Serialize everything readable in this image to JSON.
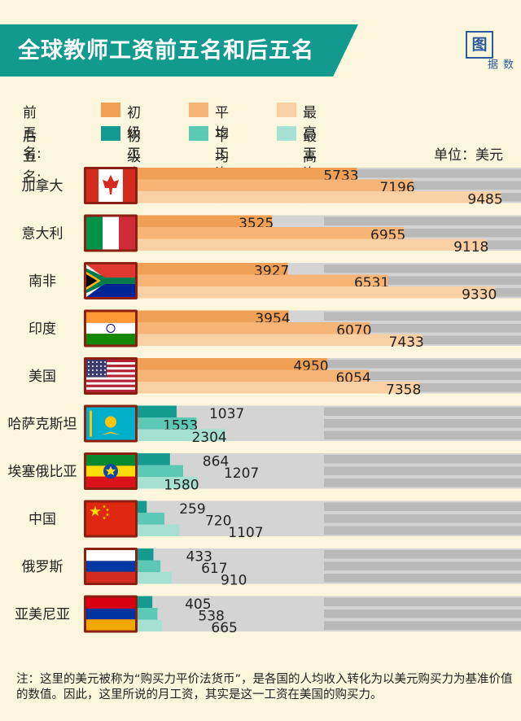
{
  "title": "全球教师工资前五名和后五名",
  "logo": {
    "mark": "图",
    "sub": "数据"
  },
  "legend": {
    "top_label": "前五名:",
    "bottom_label": "后五名:",
    "items": [
      "初级工资",
      "平均工资",
      "最高工资"
    ]
  },
  "unit": "单位：美元",
  "colors": {
    "top": [
      "#f0a055",
      "#f6b577",
      "#f9cfa4"
    ],
    "bottom": [
      "#149a8f",
      "#5bc9b6",
      "#a5e0d2"
    ],
    "track_light": "#d4d4d4",
    "track_dark": "#a3a3a3",
    "background": "#fbf6dc"
  },
  "chart_data": {
    "type": "bar",
    "categories": [
      "加拿大",
      "意大利",
      "南非",
      "印度",
      "美国",
      "哈萨克斯坦",
      "埃塞俄比亚",
      "中国",
      "俄罗斯",
      "亚美尼亚"
    ],
    "series": [
      {
        "name": "初级工资",
        "values": [
          5733,
          3525,
          3927,
          3954,
          4950,
          1037,
          864,
          259,
          433,
          405
        ]
      },
      {
        "name": "平均工资",
        "values": [
          7196,
          6955,
          6531,
          6070,
          6054,
          1553,
          1207,
          720,
          617,
          538
        ]
      },
      {
        "name": "最高工资",
        "values": [
          9485,
          9118,
          9330,
          7433,
          7358,
          2304,
          1580,
          1107,
          910,
          665
        ]
      }
    ],
    "groups": [
      "前五名",
      "前五名",
      "前五名",
      "前五名",
      "前五名",
      "后五名",
      "后五名",
      "后五名",
      "后五名",
      "后五名"
    ],
    "flags": [
      "canada-flag",
      "italy-flag",
      "south-africa-flag",
      "india-flag",
      "usa-flag",
      "kazakhstan-flag",
      "ethiopia-flag",
      "china-flag",
      "russia-flag",
      "armenia-flag"
    ]
  },
  "footnote": "注：这里的美元被称为“购买力平价法货币”，是各国的人均收入转化为以美元购买力为基准价值的数值。因此，这里所说的月工资，其实是这一工资在美国的购买力。"
}
